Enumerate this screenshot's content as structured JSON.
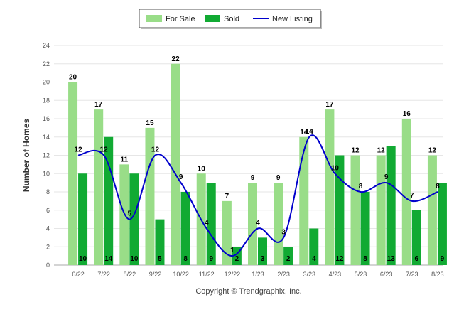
{
  "chart_data": {
    "type": "bar",
    "ylabel": "Number of Homes",
    "xlabel": "",
    "ylim": [
      0,
      24
    ],
    "yticks": [
      0,
      2,
      4,
      6,
      8,
      10,
      12,
      14,
      16,
      18,
      20,
      22,
      24
    ],
    "grid": true,
    "legend_position": "top-center",
    "categories": [
      "6/22",
      "7/22",
      "8/22",
      "9/22",
      "10/22",
      "11/22",
      "12/22",
      "1/23",
      "2/23",
      "3/23",
      "4/23",
      "5/23",
      "6/23",
      "7/23",
      "8/23"
    ],
    "series": [
      {
        "name": "For Sale",
        "type": "bar",
        "color": "#99dd88",
        "values": [
          20,
          17,
          11,
          15,
          22,
          10,
          7,
          9,
          9,
          14,
          17,
          12,
          12,
          16,
          12
        ]
      },
      {
        "name": "Sold",
        "type": "bar",
        "color": "#11aa33",
        "values": [
          10,
          14,
          10,
          5,
          8,
          9,
          2,
          3,
          2,
          4,
          12,
          8,
          13,
          6,
          9
        ]
      },
      {
        "name": "New Listing",
        "type": "line",
        "color": "#0000cc",
        "values": [
          12,
          12,
          5,
          12,
          9,
          4,
          1,
          4,
          3,
          14,
          10,
          8,
          9,
          7,
          8
        ]
      }
    ]
  },
  "footer": {
    "copyright": "Copyright © Trendgraphix, Inc."
  }
}
